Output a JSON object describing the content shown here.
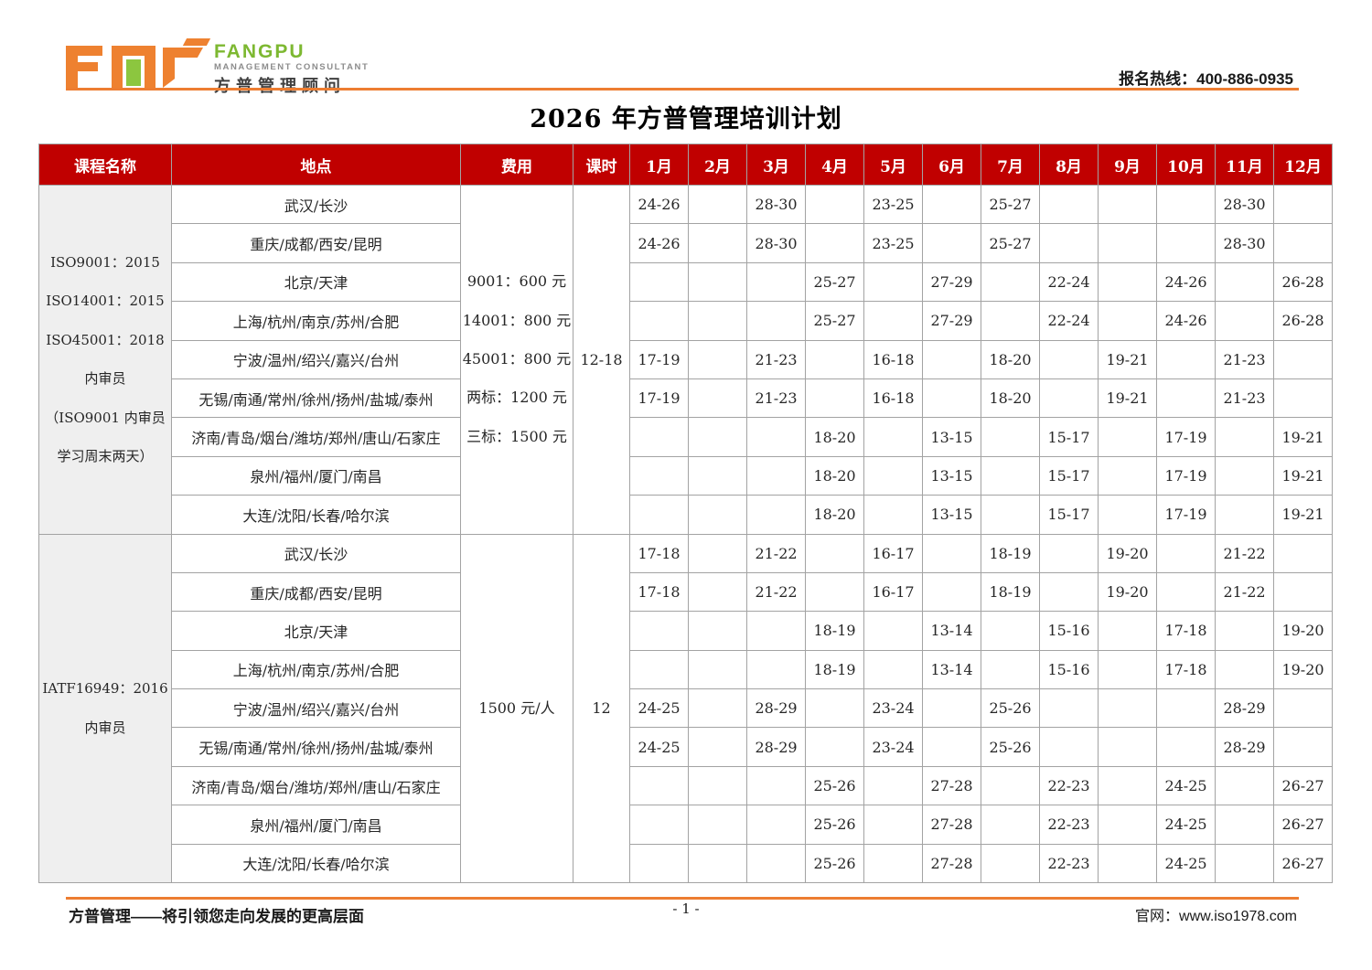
{
  "brand": {
    "name_en": "FANGPU",
    "name_sub": "MANAGEMENT CONSULTANT",
    "name_cn": "方普管理顾问",
    "colors": {
      "orange": "#EE8130",
      "green": "#8CC63F",
      "red": "#C00000",
      "line": "#ED7D31"
    }
  },
  "header": {
    "hotline": "报名热线：400-886-0935"
  },
  "title": "2026 年方普管理培训计划",
  "table": {
    "columns": [
      "课程名称",
      "地点",
      "费用",
      "课时"
    ],
    "months": [
      "1月",
      "2月",
      "3月",
      "4月",
      "5月",
      "6月",
      "7月",
      "8月",
      "9月",
      "10月",
      "11月",
      "12月"
    ],
    "groups": [
      {
        "course_lines": [
          "ISO9001：2015",
          "ISO14001：2015",
          "ISO45001：2018",
          "内审员",
          "（ISO9001 内审员",
          "学习周末两天）"
        ],
        "fee_lines": [
          "9001：600 元",
          "14001：800 元",
          "45001：800 元",
          "两标：1200 元",
          "三标：1500 元"
        ],
        "hours": "12-18",
        "rows": [
          {
            "location": "武汉/长沙",
            "months": [
              "24-26",
              "",
              "28-30",
              "",
              "23-25",
              "",
              "25-27",
              "",
              "",
              "",
              "28-30",
              ""
            ]
          },
          {
            "location": "重庆/成都/西安/昆明",
            "months": [
              "24-26",
              "",
              "28-30",
              "",
              "23-25",
              "",
              "25-27",
              "",
              "",
              "",
              "28-30",
              ""
            ]
          },
          {
            "location": "北京/天津",
            "months": [
              "",
              "",
              "",
              "25-27",
              "",
              "27-29",
              "",
              "22-24",
              "",
              "24-26",
              "",
              "26-28"
            ]
          },
          {
            "location": "上海/杭州/南京/苏州/合肥",
            "months": [
              "",
              "",
              "",
              "25-27",
              "",
              "27-29",
              "",
              "22-24",
              "",
              "24-26",
              "",
              "26-28"
            ]
          },
          {
            "location": "宁波/温州/绍兴/嘉兴/台州",
            "months": [
              "17-19",
              "",
              "21-23",
              "",
              "16-18",
              "",
              "18-20",
              "",
              "19-21",
              "",
              "21-23",
              ""
            ]
          },
          {
            "location": "无锡/南通/常州/徐州/扬州/盐城/泰州",
            "months": [
              "17-19",
              "",
              "21-23",
              "",
              "16-18",
              "",
              "18-20",
              "",
              "19-21",
              "",
              "21-23",
              ""
            ]
          },
          {
            "location": "济南/青岛/烟台/潍坊/郑州/唐山/石家庄",
            "months": [
              "",
              "",
              "",
              "18-20",
              "",
              "13-15",
              "",
              "15-17",
              "",
              "17-19",
              "",
              "19-21"
            ]
          },
          {
            "location": "泉州/福州/厦门/南昌",
            "months": [
              "",
              "",
              "",
              "18-20",
              "",
              "13-15",
              "",
              "15-17",
              "",
              "17-19",
              "",
              "19-21"
            ]
          },
          {
            "location": "大连/沈阳/长春/哈尔滨",
            "months": [
              "",
              "",
              "",
              "18-20",
              "",
              "13-15",
              "",
              "15-17",
              "",
              "17-19",
              "",
              "19-21"
            ]
          }
        ]
      },
      {
        "course_lines": [
          "IATF16949：2016",
          "内审员"
        ],
        "fee_lines": [
          "1500 元/人"
        ],
        "hours": "12",
        "rows": [
          {
            "location": "武汉/长沙",
            "months": [
              "17-18",
              "",
              "21-22",
              "",
              "16-17",
              "",
              "18-19",
              "",
              "19-20",
              "",
              "21-22",
              ""
            ]
          },
          {
            "location": "重庆/成都/西安/昆明",
            "months": [
              "17-18",
              "",
              "21-22",
              "",
              "16-17",
              "",
              "18-19",
              "",
              "19-20",
              "",
              "21-22",
              ""
            ]
          },
          {
            "location": "北京/天津",
            "months": [
              "",
              "",
              "",
              "18-19",
              "",
              "13-14",
              "",
              "15-16",
              "",
              "17-18",
              "",
              "19-20"
            ]
          },
          {
            "location": "上海/杭州/南京/苏州/合肥",
            "months": [
              "",
              "",
              "",
              "18-19",
              "",
              "13-14",
              "",
              "15-16",
              "",
              "17-18",
              "",
              "19-20"
            ]
          },
          {
            "location": "宁波/温州/绍兴/嘉兴/台州",
            "months": [
              "24-25",
              "",
              "28-29",
              "",
              "23-24",
              "",
              "25-26",
              "",
              "",
              "",
              "28-29",
              ""
            ]
          },
          {
            "location": "无锡/南通/常州/徐州/扬州/盐城/泰州",
            "months": [
              "24-25",
              "",
              "28-29",
              "",
              "23-24",
              "",
              "25-26",
              "",
              "",
              "",
              "28-29",
              ""
            ]
          },
          {
            "location": "济南/青岛/烟台/潍坊/郑州/唐山/石家庄",
            "months": [
              "",
              "",
              "",
              "25-26",
              "",
              "27-28",
              "",
              "22-23",
              "",
              "24-25",
              "",
              "26-27"
            ]
          },
          {
            "location": "泉州/福州/厦门/南昌",
            "months": [
              "",
              "",
              "",
              "25-26",
              "",
              "27-28",
              "",
              "22-23",
              "",
              "24-25",
              "",
              "26-27"
            ]
          },
          {
            "location": "大连/沈阳/长春/哈尔滨",
            "months": [
              "",
              "",
              "",
              "25-26",
              "",
              "27-28",
              "",
              "22-23",
              "",
              "24-25",
              "",
              "26-27"
            ]
          }
        ]
      }
    ]
  },
  "footer": {
    "slogan": "方普管理——将引领您走向发展的更高层面",
    "page": "- 1 -",
    "website": "官网：www.iso1978.com"
  }
}
